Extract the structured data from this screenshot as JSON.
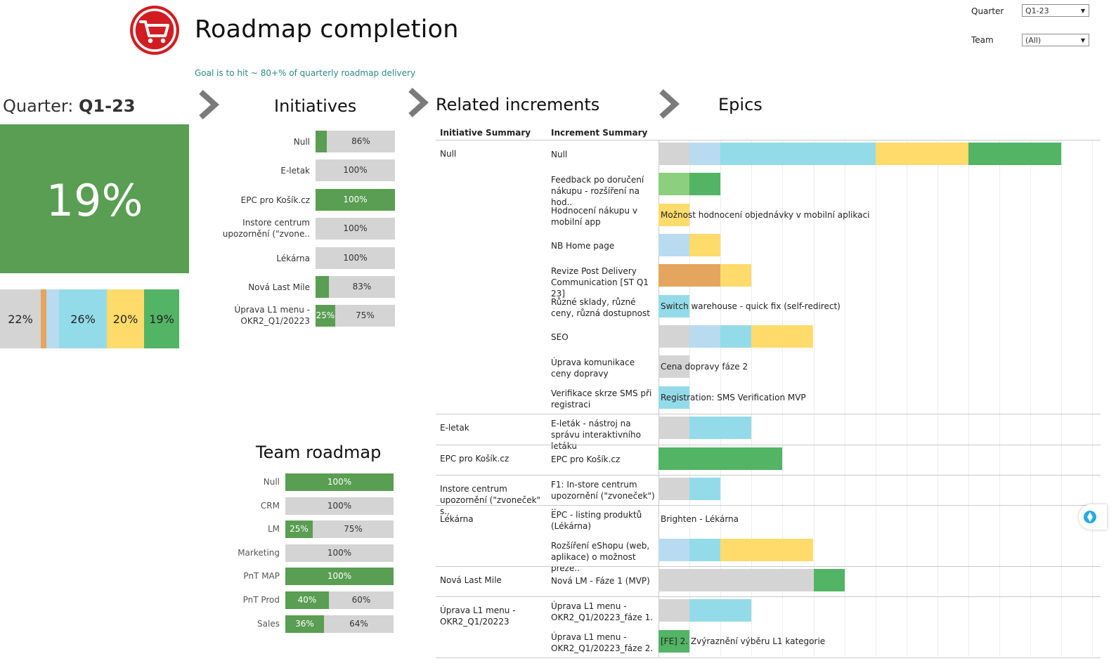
{
  "header": {
    "title": "Roadmap completion",
    "subtitle": "Goal is to hit ~ 80+% of quarterly roadmap delivery",
    "logo_icon": "shopping-cart-icon"
  },
  "filters": {
    "quarter": {
      "label": "Quarter",
      "value": "Q1-23"
    },
    "team": {
      "label": "Team",
      "value": "(All)"
    }
  },
  "colors": {
    "green": "#599e52",
    "green_bright": "#52b464",
    "light_green": "#8ccf7e",
    "gray": "#d4d4d4",
    "orange": "#e4a55e",
    "light_blue": "#b8dbf0",
    "cyan": "#94dbe9",
    "yellow": "#fedb6a"
  },
  "quarter_panel": {
    "label": "Quarter: ",
    "value": "Q1-23",
    "kpi": "19%",
    "breakdown": [
      {
        "color": "gray",
        "share": 0.22,
        "label": "22%"
      },
      {
        "color": "orange",
        "share": 0.03,
        "label": ""
      },
      {
        "color": "light_blue",
        "share": 0.07,
        "label": ""
      },
      {
        "color": "cyan",
        "share": 0.26,
        "label": "26%"
      },
      {
        "color": "yellow",
        "share": 0.2,
        "label": "20%"
      },
      {
        "color": "green_bright",
        "share": 0.19,
        "label": "19%"
      }
    ]
  },
  "initiatives": {
    "title": "Initiatives",
    "rows": [
      {
        "label": "Null",
        "done": 0.14,
        "done_label": "",
        "rest_label": "86%"
      },
      {
        "label": "E-letak",
        "done": 0,
        "done_label": "",
        "rest_label": "100%"
      },
      {
        "label": "EPC pro Košík.cz",
        "done": 1,
        "done_label": "100%",
        "rest_label": ""
      },
      {
        "label": "Instore centrum upozornění (\"zvone..",
        "done": 0,
        "done_label": "",
        "rest_label": "100%"
      },
      {
        "label": "Lékárna",
        "done": 0,
        "done_label": "",
        "rest_label": "100%"
      },
      {
        "label": "Nová Last Mile",
        "done": 0.17,
        "done_label": "",
        "rest_label": "83%"
      },
      {
        "label": "Úprava L1 menu - OKR2_Q1/20223",
        "done": 0.25,
        "done_label": "25%",
        "rest_label": "75%"
      }
    ]
  },
  "team_roadmap": {
    "title": "Team roadmap",
    "rows": [
      {
        "label": "Null",
        "done": 1,
        "done_label": "100%",
        "rest_label": ""
      },
      {
        "label": "CRM",
        "done": 0,
        "done_label": "",
        "rest_label": "100%"
      },
      {
        "label": "LM",
        "done": 0.25,
        "done_label": "25%",
        "rest_label": "75%"
      },
      {
        "label": "Marketing",
        "done": 0,
        "done_label": "",
        "rest_label": "100%"
      },
      {
        "label": "PnT MAP",
        "done": 1,
        "done_label": "100%",
        "rest_label": ""
      },
      {
        "label": "PnT Prod",
        "done": 0.4,
        "done_label": "40%",
        "rest_label": "60%"
      },
      {
        "label": "Sales",
        "done": 0.36,
        "done_label": "36%",
        "rest_label": "64%"
      }
    ]
  },
  "related": {
    "title": "Related increments",
    "col_initiative": "Initiative Summary",
    "col_increment": "Increment Summary",
    "groups": [
      {
        "initiative": "Null",
        "rows": [
          {
            "increment": "Null",
            "segments": [
              [
                "gray",
                1
              ],
              [
                "light_blue",
                1
              ],
              [
                "cyan",
                5
              ],
              [
                "yellow",
                3
              ],
              [
                "green_bright",
                3
              ]
            ],
            "label": ""
          },
          {
            "increment": "Feedback po doručení nákupu - rozšíření na hod..",
            "segments": [
              [
                "light_green",
                1
              ],
              [
                "green_bright",
                1
              ]
            ],
            "label": ""
          },
          {
            "increment": "Hodnocení nákupu v mobilní app",
            "segments": [
              [
                "yellow",
                1
              ]
            ],
            "label": "Možnost hodnocení objednávky v mobilní aplikaci"
          },
          {
            "increment": "NB Home page",
            "segments": [
              [
                "light_blue",
                1
              ],
              [
                "yellow",
                1
              ]
            ],
            "label": ""
          },
          {
            "increment": "Revize Post Delivery Communication [ST Q1 23]",
            "segments": [
              [
                "orange",
                2
              ],
              [
                "yellow",
                1
              ]
            ],
            "label": ""
          },
          {
            "increment": "Různé sklady, různé ceny, různá dostupnost",
            "segments": [
              [
                "cyan",
                1
              ]
            ],
            "label": "Switch warehouse - quick fix (self-redirect)"
          },
          {
            "increment": "SEO",
            "segments": [
              [
                "gray",
                1
              ],
              [
                "light_blue",
                1
              ],
              [
                "cyan",
                1
              ],
              [
                "yellow",
                2
              ]
            ],
            "label": ""
          },
          {
            "increment": "Úprava komunikace ceny dopravy",
            "segments": [
              [
                "gray",
                1
              ]
            ],
            "label": "Cena dopravy fáze 2"
          },
          {
            "increment": "Verifikace skrze SMS při registraci",
            "segments": [
              [
                "cyan",
                1
              ]
            ],
            "label": "Registration:  SMS Verification MVP"
          }
        ]
      },
      {
        "initiative": "E-letak",
        "rows": [
          {
            "increment": "E-leták - nástroj na správu interaktivního letáku",
            "segments": [
              [
                "gray",
                1
              ],
              [
                "cyan",
                2
              ]
            ],
            "label": ""
          }
        ]
      },
      {
        "initiative": "EPC pro Košík.cz",
        "rows": [
          {
            "increment": "EPC pro Košík.cz",
            "segments": [
              [
                "green_bright",
                4
              ]
            ],
            "label": ""
          }
        ]
      },
      {
        "initiative": "Instore centrum upozornění (\"zvoneček\" s..",
        "rows": [
          {
            "increment": "F1: In-store centrum upozornění (\"zvoneček\") ..",
            "segments": [
              [
                "gray",
                1
              ],
              [
                "cyan",
                1
              ]
            ],
            "label": ""
          }
        ]
      },
      {
        "initiative": "Lékárna",
        "rows": [
          {
            "increment": "EPC - listing produktů (Lékárna)",
            "segments": [],
            "label": "Brighten - Lékárna"
          },
          {
            "increment": "Rozšíření eShopu (web, aplikace) o možnost preze..",
            "segments": [
              [
                "light_blue",
                1
              ],
              [
                "cyan",
                1
              ],
              [
                "yellow",
                3
              ]
            ],
            "label": ""
          }
        ]
      },
      {
        "initiative": "Nová Last Mile",
        "rows": [
          {
            "increment": "Nová LM - Fáze 1 (MVP)",
            "segments": [
              [
                "gray",
                5
              ],
              [
                "green_bright",
                1
              ]
            ],
            "label": ""
          }
        ]
      },
      {
        "initiative": "Úprava L1 menu - OKR2_Q1/20223",
        "rows": [
          {
            "increment": "Úprava L1 menu - OKR2_Q1/20223_fáze 1.",
            "segments": [
              [
                "gray",
                1
              ],
              [
                "cyan",
                2
              ]
            ],
            "label": ""
          },
          {
            "increment": "Úprava L1 menu - OKR2_Q1/20223_fáze 2.",
            "segments": [
              [
                "green_bright",
                1
              ]
            ],
            "label": "[FE] 2. Zvýraznění výběru L1 kategorie"
          }
        ]
      }
    ]
  },
  "epics": {
    "title": "Epics"
  }
}
